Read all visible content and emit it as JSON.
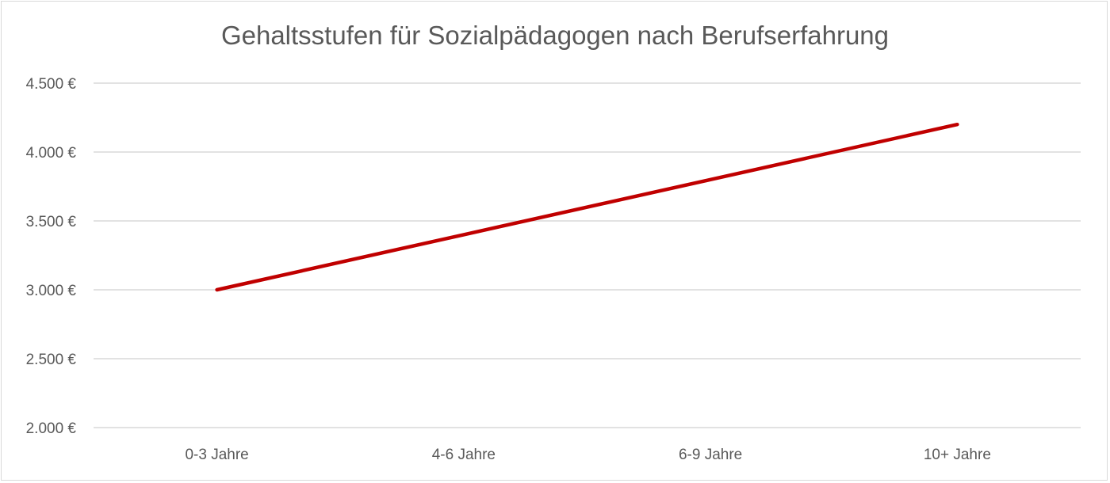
{
  "chart_data": {
    "type": "line",
    "title": "Gehaltsstufen für Sozialpädagogen nach Berufserfahrung",
    "categories": [
      "0-3 Jahre",
      "4-6 Jahre",
      "6-9 Jahre",
      "10+ Jahre"
    ],
    "series": [
      {
        "values": [
          3000,
          3400,
          3800,
          4200
        ],
        "color": "#C00000"
      }
    ],
    "yticks": [
      2000,
      2500,
      3000,
      3500,
      4000,
      4500
    ],
    "ytick_labels": [
      "2.000 €",
      "2.500 €",
      "3.000 €",
      "3.500 €",
      "4.000 €",
      "4.500 €"
    ],
    "ylim": [
      2000,
      4500
    ],
    "grid": true,
    "legend": "none",
    "xlabel": "",
    "ylabel": ""
  }
}
